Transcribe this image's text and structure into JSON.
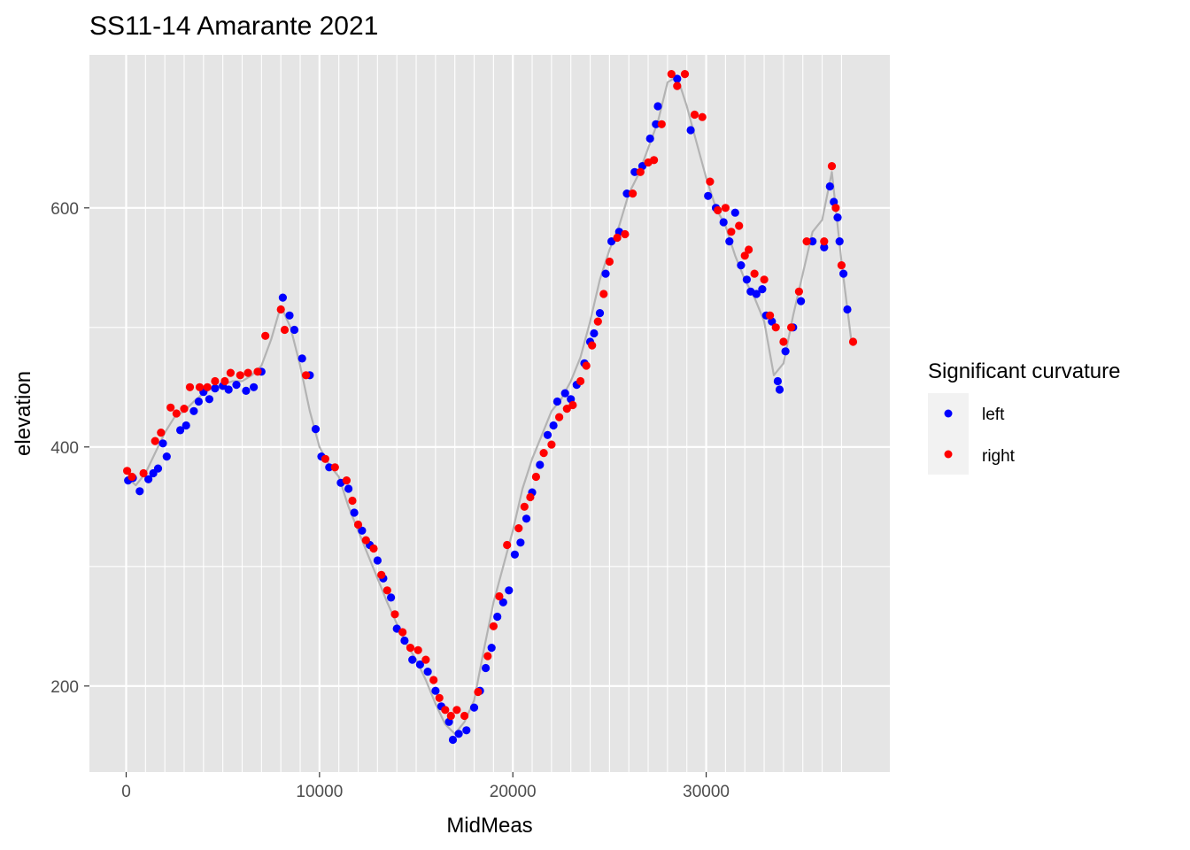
{
  "chart_data": {
    "type": "scatter",
    "title": "SS11-14 Amarante 2021",
    "xlabel": "MidMeas",
    "ylabel": "elevation",
    "xlim": [
      -1900,
      39500
    ],
    "ylim": [
      128,
      728
    ],
    "x_ticks": [
      0,
      10000,
      20000,
      30000
    ],
    "x_tick_labels": [
      "0",
      "10000",
      "20000",
      "30000"
    ],
    "y_ticks": [
      200,
      400,
      600
    ],
    "y_tick_labels": [
      "200",
      "400",
      "600"
    ],
    "x_minor_grid": [
      1000,
      2000,
      3000,
      4000,
      5000,
      6000,
      7000,
      8000,
      9000,
      11000,
      12000,
      13000,
      14000,
      15000,
      16000,
      17000,
      18000,
      19000,
      21000,
      22000,
      23000,
      24000,
      25000,
      26000,
      27000,
      28000,
      29000,
      31000,
      32000,
      33000,
      34000,
      35000,
      36000,
      37000
    ],
    "y_minor_grid": [
      300,
      500
    ],
    "grid": true,
    "background_color": "#e5e5e5",
    "profile_line_color": "#b3b3b3",
    "legend": {
      "title": "Significant curvature",
      "position": "right",
      "entries": [
        {
          "label": "left",
          "color": "#0000ff"
        },
        {
          "label": "right",
          "color": "#ff0000"
        }
      ]
    },
    "profile": {
      "x": [
        0,
        500,
        1000,
        1500,
        2000,
        2500,
        3000,
        3500,
        4000,
        4500,
        5000,
        5500,
        6000,
        6500,
        7000,
        7500,
        8000,
        8500,
        9000,
        9500,
        10000,
        10500,
        11000,
        11500,
        12000,
        12500,
        13000,
        13500,
        14000,
        14500,
        15000,
        15500,
        16000,
        16500,
        17000,
        17500,
        18000,
        18500,
        19000,
        19500,
        20000,
        20500,
        21000,
        21500,
        22000,
        22500,
        23000,
        23500,
        24000,
        24500,
        25000,
        25500,
        26000,
        26500,
        27000,
        27500,
        28000,
        28500,
        29000,
        29500,
        30000,
        30500,
        31000,
        31500,
        32000,
        32500,
        33000,
        33500,
        34000,
        34500,
        35000,
        35500,
        36000,
        36500,
        37000,
        37500
      ],
      "y": [
        375,
        368,
        378,
        395,
        412,
        425,
        430,
        438,
        445,
        450,
        452,
        455,
        455,
        460,
        468,
        490,
        518,
        500,
        468,
        430,
        400,
        385,
        375,
        350,
        330,
        310,
        290,
        270,
        252,
        235,
        222,
        205,
        185,
        168,
        160,
        170,
        188,
        230,
        270,
        300,
        330,
        365,
        390,
        410,
        430,
        440,
        455,
        475,
        505,
        540,
        565,
        585,
        612,
        628,
        650,
        672,
        705,
        710,
        685,
        655,
        625,
        600,
        585,
        560,
        540,
        525,
        505,
        460,
        470,
        510,
        545,
        580,
        590,
        630,
        555,
        490
      ]
    },
    "series": [
      {
        "name": "left",
        "color": "#0000ff",
        "points": [
          [
            100,
            372
          ],
          [
            350,
            374
          ],
          [
            700,
            363
          ],
          [
            1150,
            373
          ],
          [
            1400,
            378
          ],
          [
            1650,
            382
          ],
          [
            1900,
            403
          ],
          [
            2100,
            392
          ],
          [
            2800,
            414
          ],
          [
            3100,
            418
          ],
          [
            3500,
            430
          ],
          [
            3750,
            438
          ],
          [
            4000,
            446
          ],
          [
            4300,
            440
          ],
          [
            4600,
            449
          ],
          [
            5000,
            451
          ],
          [
            5300,
            448
          ],
          [
            5700,
            452
          ],
          [
            6200,
            447
          ],
          [
            6600,
            450
          ],
          [
            7000,
            463
          ],
          [
            8100,
            525
          ],
          [
            8450,
            510
          ],
          [
            8700,
            498
          ],
          [
            9100,
            474
          ],
          [
            9500,
            460
          ],
          [
            9800,
            415
          ],
          [
            10100,
            392
          ],
          [
            10500,
            383
          ],
          [
            11100,
            370
          ],
          [
            11500,
            365
          ],
          [
            11800,
            345
          ],
          [
            12200,
            330
          ],
          [
            12600,
            318
          ],
          [
            13000,
            305
          ],
          [
            13300,
            290
          ],
          [
            13700,
            274
          ],
          [
            14000,
            248
          ],
          [
            14400,
            238
          ],
          [
            14800,
            222
          ],
          [
            15200,
            218
          ],
          [
            15600,
            212
          ],
          [
            16000,
            196
          ],
          [
            16300,
            183
          ],
          [
            16700,
            170
          ],
          [
            16900,
            155
          ],
          [
            17200,
            160
          ],
          [
            17600,
            163
          ],
          [
            18000,
            182
          ],
          [
            18300,
            196
          ],
          [
            18600,
            215
          ],
          [
            18900,
            232
          ],
          [
            19200,
            258
          ],
          [
            19500,
            270
          ],
          [
            19800,
            280
          ],
          [
            20100,
            310
          ],
          [
            20400,
            320
          ],
          [
            20700,
            340
          ],
          [
            21000,
            362
          ],
          [
            21400,
            385
          ],
          [
            21800,
            410
          ],
          [
            22100,
            418
          ],
          [
            22300,
            438
          ],
          [
            22700,
            445
          ],
          [
            23000,
            440
          ],
          [
            23300,
            452
          ],
          [
            23700,
            470
          ],
          [
            24000,
            488
          ],
          [
            24200,
            495
          ],
          [
            24500,
            512
          ],
          [
            24800,
            545
          ],
          [
            25100,
            572
          ],
          [
            25500,
            580
          ],
          [
            25900,
            612
          ],
          [
            26300,
            630
          ],
          [
            26700,
            635
          ],
          [
            27100,
            658
          ],
          [
            27400,
            670
          ],
          [
            27500,
            685
          ],
          [
            28500,
            708
          ],
          [
            29200,
            665
          ],
          [
            30100,
            610
          ],
          [
            30500,
            600
          ],
          [
            30900,
            588
          ],
          [
            31200,
            572
          ],
          [
            31500,
            596
          ],
          [
            31800,
            552
          ],
          [
            32100,
            540
          ],
          [
            32300,
            530
          ],
          [
            32600,
            528
          ],
          [
            32900,
            532
          ],
          [
            33100,
            510
          ],
          [
            33400,
            505
          ],
          [
            33700,
            455
          ],
          [
            33800,
            448
          ],
          [
            34100,
            480
          ],
          [
            34500,
            500
          ],
          [
            34900,
            522
          ],
          [
            35500,
            572
          ],
          [
            36100,
            567
          ],
          [
            36400,
            618
          ],
          [
            36600,
            605
          ],
          [
            36800,
            592
          ],
          [
            36900,
            572
          ],
          [
            37100,
            545
          ],
          [
            37300,
            515
          ]
        ]
      },
      {
        "name": "right",
        "color": "#ff0000",
        "points": [
          [
            50,
            380
          ],
          [
            300,
            375
          ],
          [
            900,
            378
          ],
          [
            1500,
            405
          ],
          [
            1800,
            412
          ],
          [
            2300,
            433
          ],
          [
            2600,
            428
          ],
          [
            3000,
            432
          ],
          [
            3300,
            450
          ],
          [
            3800,
            450
          ],
          [
            4200,
            450
          ],
          [
            4600,
            455
          ],
          [
            5100,
            455
          ],
          [
            5400,
            462
          ],
          [
            5900,
            460
          ],
          [
            6300,
            462
          ],
          [
            6800,
            463
          ],
          [
            7200,
            493
          ],
          [
            8000,
            515
          ],
          [
            8200,
            498
          ],
          [
            9300,
            460
          ],
          [
            10300,
            390
          ],
          [
            10800,
            383
          ],
          [
            11400,
            372
          ],
          [
            11700,
            355
          ],
          [
            12000,
            335
          ],
          [
            12400,
            322
          ],
          [
            12800,
            315
          ],
          [
            13200,
            293
          ],
          [
            13500,
            280
          ],
          [
            13900,
            260
          ],
          [
            14300,
            245
          ],
          [
            14700,
            232
          ],
          [
            15100,
            230
          ],
          [
            15500,
            222
          ],
          [
            15900,
            205
          ],
          [
            16200,
            190
          ],
          [
            16500,
            180
          ],
          [
            16800,
            175
          ],
          [
            17100,
            180
          ],
          [
            17500,
            175
          ],
          [
            18200,
            195
          ],
          [
            18700,
            225
          ],
          [
            19000,
            250
          ],
          [
            19300,
            275
          ],
          [
            19700,
            318
          ],
          [
            20300,
            332
          ],
          [
            20600,
            350
          ],
          [
            20900,
            358
          ],
          [
            21200,
            375
          ],
          [
            21600,
            395
          ],
          [
            22000,
            402
          ],
          [
            22400,
            425
          ],
          [
            22800,
            432
          ],
          [
            23100,
            435
          ],
          [
            23500,
            455
          ],
          [
            23800,
            468
          ],
          [
            24100,
            485
          ],
          [
            24400,
            505
          ],
          [
            24700,
            528
          ],
          [
            25000,
            555
          ],
          [
            25400,
            575
          ],
          [
            25800,
            578
          ],
          [
            26200,
            612
          ],
          [
            26600,
            630
          ],
          [
            27000,
            638
          ],
          [
            27300,
            640
          ],
          [
            27700,
            670
          ],
          [
            28200,
            712
          ],
          [
            28500,
            702
          ],
          [
            28900,
            712
          ],
          [
            29400,
            678
          ],
          [
            29800,
            676
          ],
          [
            30200,
            622
          ],
          [
            30600,
            598
          ],
          [
            31000,
            600
          ],
          [
            31300,
            580
          ],
          [
            31700,
            585
          ],
          [
            32000,
            560
          ],
          [
            32200,
            565
          ],
          [
            32500,
            545
          ],
          [
            33000,
            540
          ],
          [
            33300,
            510
          ],
          [
            33600,
            500
          ],
          [
            34000,
            488
          ],
          [
            34400,
            500
          ],
          [
            34800,
            530
          ],
          [
            35200,
            572
          ],
          [
            36100,
            572
          ],
          [
            36500,
            635
          ],
          [
            36700,
            600
          ],
          [
            37000,
            552
          ],
          [
            37600,
            488
          ]
        ]
      }
    ]
  }
}
